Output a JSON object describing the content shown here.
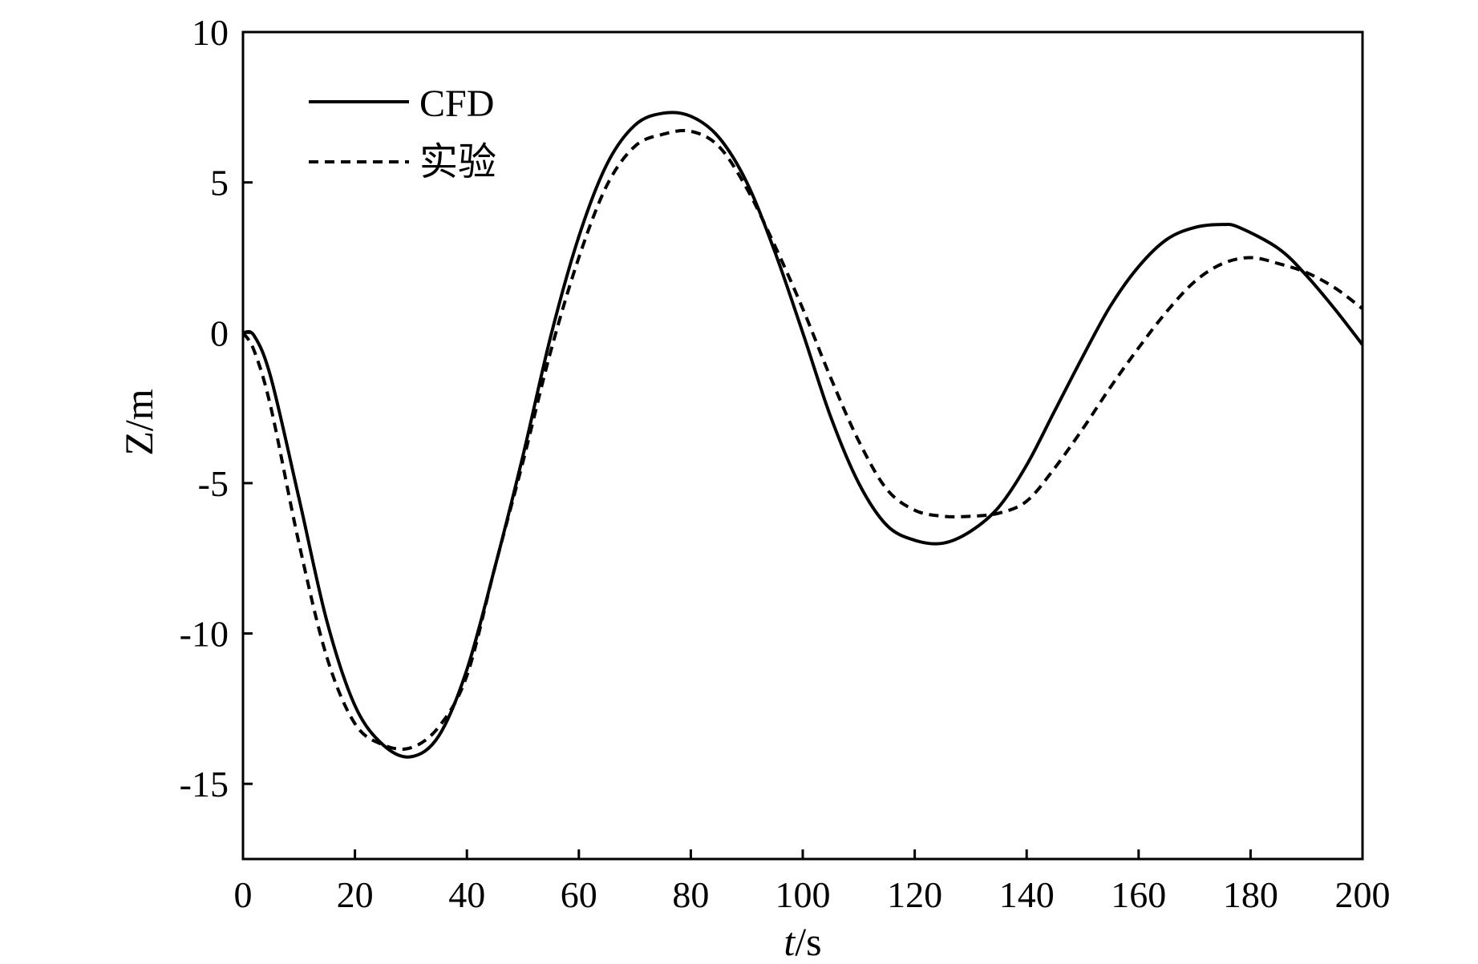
{
  "chart_data": {
    "type": "line",
    "xlabel_italic": "t",
    "xlabel_unit": "/s",
    "ylabel": "Z/m",
    "xlim": [
      0,
      200
    ],
    "ylim": [
      -17.5,
      10
    ],
    "xticks": [
      "0",
      "20",
      "40",
      "60",
      "80",
      "100",
      "120",
      "140",
      "160",
      "180",
      "200"
    ],
    "yticks": [
      "10",
      "5",
      "0",
      "-5",
      "-10",
      "-15"
    ],
    "ytick_values": [
      10,
      5,
      0,
      -5,
      -10,
      -15
    ],
    "xtick_values": [
      0,
      20,
      40,
      60,
      80,
      100,
      120,
      140,
      160,
      180,
      200
    ],
    "grid": false,
    "legend_position": "top-left",
    "series": [
      {
        "name": "CFD",
        "style": "solid",
        "color": "#000000",
        "x": [
          0,
          2,
          5,
          10,
          15,
          20,
          25,
          30,
          35,
          40,
          45,
          50,
          55,
          60,
          65,
          70,
          75,
          80,
          85,
          90,
          95,
          100,
          105,
          110,
          115,
          120,
          125,
          130,
          135,
          140,
          145,
          150,
          155,
          160,
          165,
          170,
          175,
          178,
          185,
          190,
          195,
          200
        ],
        "y": [
          0,
          -0.1,
          -1.5,
          -5.5,
          -9.6,
          -12.4,
          -13.7,
          -14.1,
          -13.4,
          -11.2,
          -7.8,
          -4.1,
          -0.1,
          3.2,
          5.6,
          6.9,
          7.3,
          7.2,
          6.5,
          5.0,
          2.7,
          0.0,
          -2.8,
          -5.0,
          -6.4,
          -6.9,
          -7.0,
          -6.6,
          -5.8,
          -4.4,
          -2.6,
          -0.8,
          0.9,
          2.2,
          3.1,
          3.5,
          3.6,
          3.5,
          2.8,
          1.9,
          0.8,
          -0.4
        ]
      },
      {
        "name": "实验",
        "style": "dashed",
        "color": "#000000",
        "x": [
          0,
          2,
          5,
          10,
          15,
          20,
          25,
          30,
          35,
          40,
          45,
          50,
          55,
          60,
          65,
          70,
          75,
          80,
          85,
          90,
          95,
          100,
          105,
          110,
          115,
          120,
          125,
          130,
          135,
          140,
          145,
          150,
          155,
          160,
          165,
          170,
          175,
          180,
          185,
          190,
          195,
          200
        ],
        "y": [
          0,
          -0.6,
          -2.5,
          -7.0,
          -10.8,
          -13.0,
          -13.7,
          -13.8,
          -13.1,
          -11.4,
          -7.8,
          -4.3,
          -0.6,
          2.5,
          4.9,
          6.2,
          6.6,
          6.7,
          6.2,
          4.8,
          2.9,
          0.8,
          -1.5,
          -3.6,
          -5.2,
          -5.9,
          -6.1,
          -6.1,
          -6.0,
          -5.6,
          -4.5,
          -3.2,
          -1.8,
          -0.5,
          0.7,
          1.7,
          2.3,
          2.5,
          2.3,
          2.0,
          1.5,
          0.8
        ]
      }
    ]
  }
}
